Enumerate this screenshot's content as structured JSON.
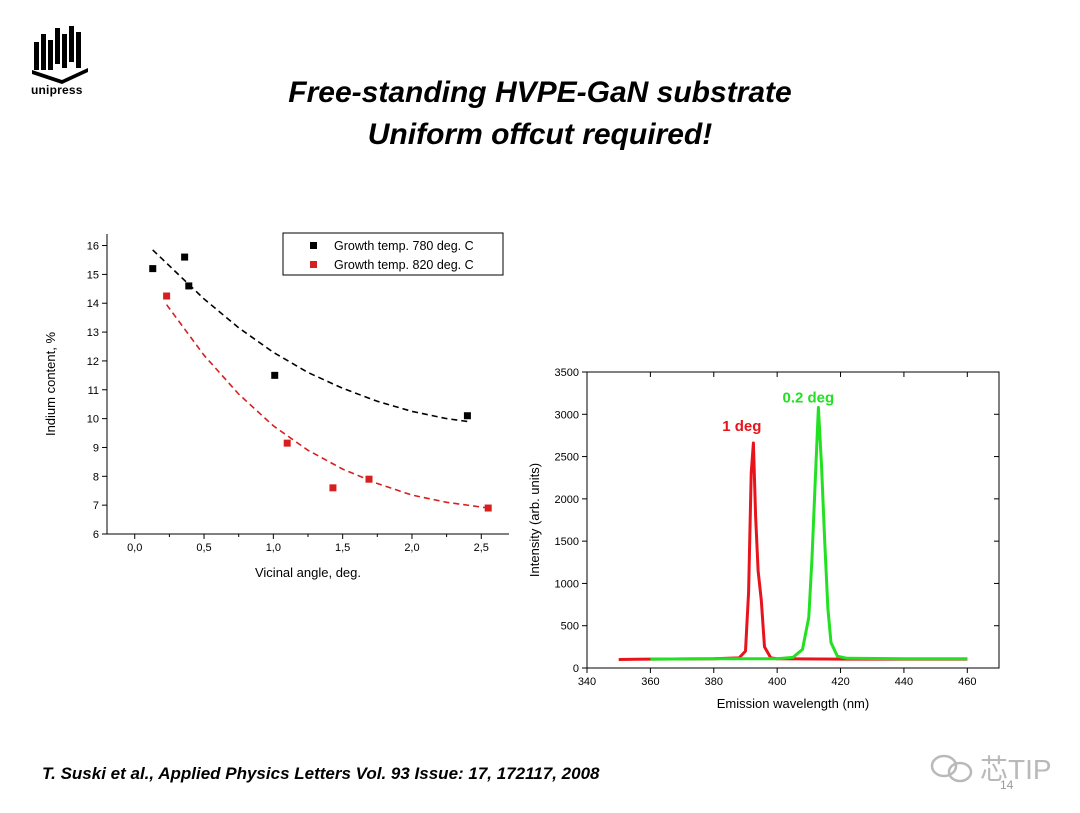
{
  "slide": {
    "logo_text": "unipress",
    "title_line1": "Free-standing HVPE-GaN substrate",
    "title_line2": "Uniform offcut required!",
    "citation": "T. Suski et al., Applied Physics Letters Vol. 93 Issue: 17, 172117, 2008",
    "page_number": "14",
    "watermark_text": "芯TIP"
  },
  "chart_data": [
    {
      "type": "scatter",
      "xlabel": "Vicinal angle, deg.",
      "ylabel": "Indium content, %",
      "xlim": [
        -0.2,
        2.7
      ],
      "ylim": [
        6,
        16.4
      ],
      "xticks": [
        0.0,
        0.5,
        1.0,
        1.5,
        2.0,
        2.5
      ],
      "xtick_labels": [
        "0,0",
        "0,5",
        "1,0",
        "1,5",
        "2,0",
        "2,5"
      ],
      "yticks": [
        6,
        7,
        8,
        9,
        10,
        11,
        12,
        13,
        14,
        15,
        16
      ],
      "ytick_labels": [
        "6",
        "7",
        "8",
        "9",
        "10",
        "11",
        "12",
        "13",
        "14",
        "15",
        "16"
      ],
      "legend_position": "top-right",
      "series": [
        {
          "name": "Growth temp. 780 deg. C",
          "color": "#000000",
          "x": [
            0.13,
            0.36,
            0.39,
            1.01,
            2.4
          ],
          "y": [
            15.2,
            15.6,
            14.6,
            11.5,
            10.1
          ],
          "fit": {
            "style": "dashed",
            "x": [
              0.13,
              0.5,
              0.75,
              1.0,
              1.25,
              1.5,
              1.75,
              2.0,
              2.25,
              2.4
            ],
            "y": [
              15.85,
              14.15,
              13.15,
              12.3,
              11.6,
              11.05,
              10.6,
              10.25,
              10.0,
              9.9
            ]
          }
        },
        {
          "name": "Growth temp. 820 deg. C",
          "color": "#d62020",
          "x": [
            0.23,
            1.1,
            1.43,
            1.69,
            2.55
          ],
          "y": [
            14.25,
            9.15,
            7.6,
            7.9,
            6.9
          ],
          "fit": {
            "style": "dashed",
            "x": [
              0.23,
              0.5,
              0.75,
              1.0,
              1.25,
              1.5,
              1.75,
              2.0,
              2.25,
              2.55
            ],
            "y": [
              13.95,
              12.2,
              10.85,
              9.75,
              8.9,
              8.25,
              7.75,
              7.35,
              7.1,
              6.9
            ]
          }
        }
      ]
    },
    {
      "type": "line",
      "xlabel": "Emission wavelength (nm)",
      "ylabel": "Intensity (arb. units)",
      "xlim": [
        340,
        470
      ],
      "ylim": [
        0,
        3500
      ],
      "xticks": [
        340,
        360,
        380,
        400,
        420,
        440,
        460
      ],
      "yticks": [
        0,
        500,
        1000,
        1500,
        2000,
        2500,
        3000,
        3500
      ],
      "annotations": [
        {
          "text": "1 deg",
          "x": 392,
          "y": 2800,
          "color": "#e8141c"
        },
        {
          "text": "0.2 deg",
          "x": 413,
          "y": 3140,
          "color": "#22e022"
        }
      ],
      "series": [
        {
          "name": "1 deg",
          "color": "#e8141c",
          "x": [
            350,
            360,
            380,
            388,
            390,
            391,
            391.8,
            392.5,
            393.2,
            394,
            395,
            396,
            398,
            400,
            420,
            440,
            460
          ],
          "y": [
            100,
            105,
            110,
            120,
            200,
            900,
            2300,
            2660,
            1800,
            1150,
            800,
            250,
            120,
            110,
            105,
            105,
            105
          ]
        },
        {
          "name": "0.2 deg",
          "color": "#22e022",
          "x": [
            360,
            380,
            400,
            405,
            408,
            410,
            411,
            412,
            413,
            414,
            415,
            416,
            417,
            419,
            422,
            440,
            460
          ],
          "y": [
            105,
            110,
            110,
            125,
            220,
            600,
            1300,
            2200,
            3080,
            2400,
            1500,
            700,
            300,
            140,
            115,
            110,
            110
          ]
        }
      ]
    }
  ]
}
